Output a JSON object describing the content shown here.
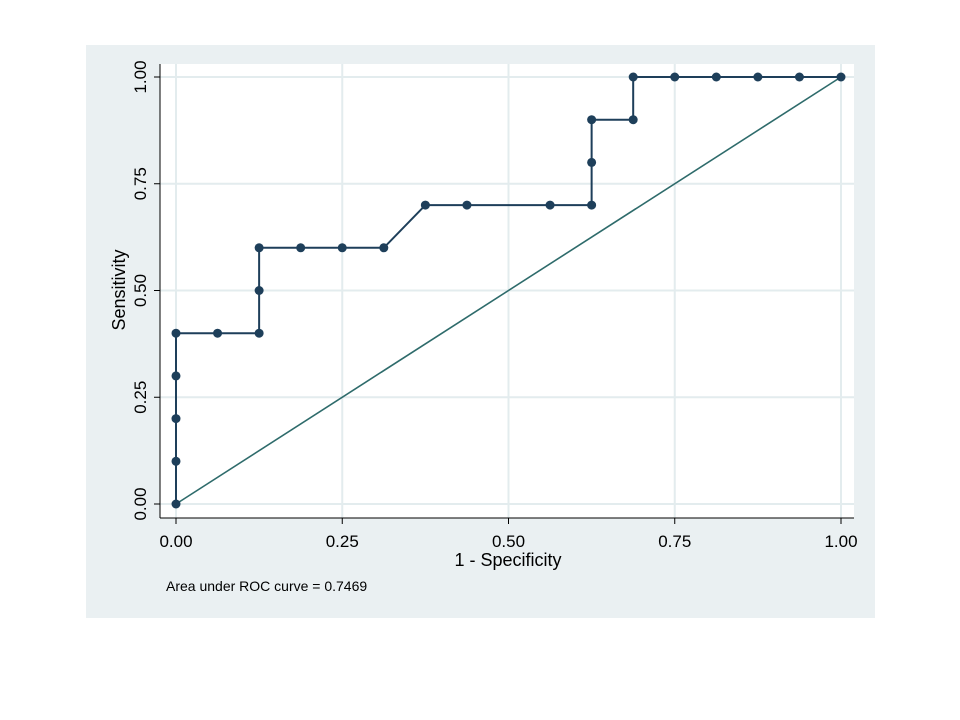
{
  "chart_data": {
    "type": "line",
    "title": "",
    "xlabel": "1 - Specificity",
    "ylabel": "Sensitivity",
    "xlim": [
      0,
      1
    ],
    "ylim": [
      0,
      1
    ],
    "xticks": [
      "0.00",
      "0.25",
      "0.50",
      "0.75",
      "1.00"
    ],
    "yticks": [
      "0.00",
      "0.25",
      "0.50",
      "0.75",
      "1.00"
    ],
    "grid": true,
    "note": "Area under ROC curve = 0.7469",
    "series": [
      {
        "type": "line-markers",
        "color": "#1e3f5a",
        "points": [
          [
            0,
            0
          ],
          [
            0,
            0.1
          ],
          [
            0,
            0.2
          ],
          [
            0,
            0.3
          ],
          [
            0,
            0.4
          ],
          [
            0.0625,
            0.4
          ],
          [
            0.125,
            0.4
          ],
          [
            0.125,
            0.5
          ],
          [
            0.125,
            0.6
          ],
          [
            0.1875,
            0.6
          ],
          [
            0.25,
            0.6
          ],
          [
            0.3125,
            0.6
          ],
          [
            0.375,
            0.7
          ],
          [
            0.4375,
            0.7
          ],
          [
            0.5625,
            0.7
          ],
          [
            0.625,
            0.7
          ],
          [
            0.625,
            0.8
          ],
          [
            0.625,
            0.9
          ],
          [
            0.6875,
            0.9
          ],
          [
            0.6875,
            1.0
          ],
          [
            0.75,
            1.0
          ],
          [
            0.8125,
            1.0
          ],
          [
            0.875,
            1.0
          ],
          [
            0.9375,
            1.0
          ],
          [
            1.0,
            1.0
          ]
        ]
      },
      {
        "type": "reference-line",
        "color": "#2e6b6b",
        "points": [
          [
            0,
            0
          ],
          [
            1,
            1
          ]
        ]
      }
    ],
    "colors": {
      "outer_background": "#eaf0f2",
      "plot_background": "#ffffff",
      "grid": "#e3ecee",
      "axis": "#000000"
    }
  }
}
